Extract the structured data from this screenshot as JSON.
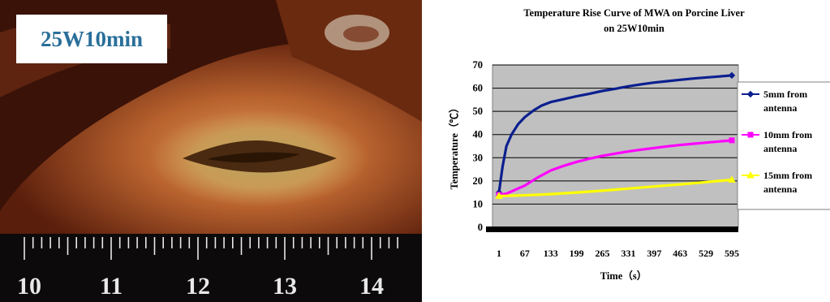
{
  "photo": {
    "label": "25W10min",
    "ruler_numbers": [
      "10",
      "11",
      "12",
      "13",
      "14"
    ]
  },
  "chart_data": {
    "type": "line",
    "title": "Temperature Rise Curve of MWA on Porcine Liver",
    "subtitle": "on 25W10min",
    "xlabel": "Time（s）",
    "ylabel": "Temperature（℃）",
    "x_ticks": [
      "1",
      "67",
      "133",
      "199",
      "265",
      "331",
      "397",
      "463",
      "529",
      "595"
    ],
    "x_range": [
      1,
      595
    ],
    "ylim": [
      0,
      70
    ],
    "y_ticks": [
      0,
      10,
      20,
      30,
      40,
      50,
      60,
      70
    ],
    "grid": true,
    "legend_position": "right",
    "series": [
      {
        "name": "5mm from antenna",
        "name_lines": [
          "5mm from",
          "antenna"
        ],
        "color": "#0b1f8f",
        "marker": "diamond",
        "x": [
          1,
          10,
          20,
          33,
          50,
          67,
          90,
          110,
          133,
          160,
          199,
          230,
          265,
          300,
          331,
          370,
          397,
          430,
          463,
          500,
          529,
          560,
          595
        ],
        "y": [
          15,
          26,
          35,
          40,
          44.5,
          47.5,
          50.5,
          52.5,
          54,
          55,
          56.5,
          57.5,
          58.8,
          59.8,
          60.8,
          61.8,
          62.4,
          63,
          63.6,
          64.2,
          64.6,
          65,
          65.5
        ]
      },
      {
        "name": "10mm from antenna",
        "name_lines": [
          "10mm from",
          "antenna"
        ],
        "color": "#ff00ff",
        "marker": "square",
        "x": [
          1,
          20,
          40,
          67,
          100,
          133,
          166,
          199,
          232,
          265,
          298,
          331,
          364,
          397,
          430,
          463,
          496,
          529,
          562,
          595
        ],
        "y": [
          14,
          14.5,
          16,
          18,
          21.5,
          24.5,
          26.5,
          28.2,
          29.6,
          30.8,
          31.8,
          32.7,
          33.5,
          34.2,
          34.9,
          35.5,
          36,
          36.5,
          37,
          37.5
        ]
      },
      {
        "name": "15mm from antenna",
        "name_lines": [
          "15mm from",
          "antenna"
        ],
        "color": "#ffff00",
        "marker": "triangle",
        "x": [
          1,
          67,
          133,
          199,
          265,
          331,
          397,
          463,
          529,
          595
        ],
        "y": [
          13.5,
          13.8,
          14.3,
          15,
          15.8,
          16.7,
          17.6,
          18.5,
          19.5,
          20.5
        ]
      }
    ]
  }
}
